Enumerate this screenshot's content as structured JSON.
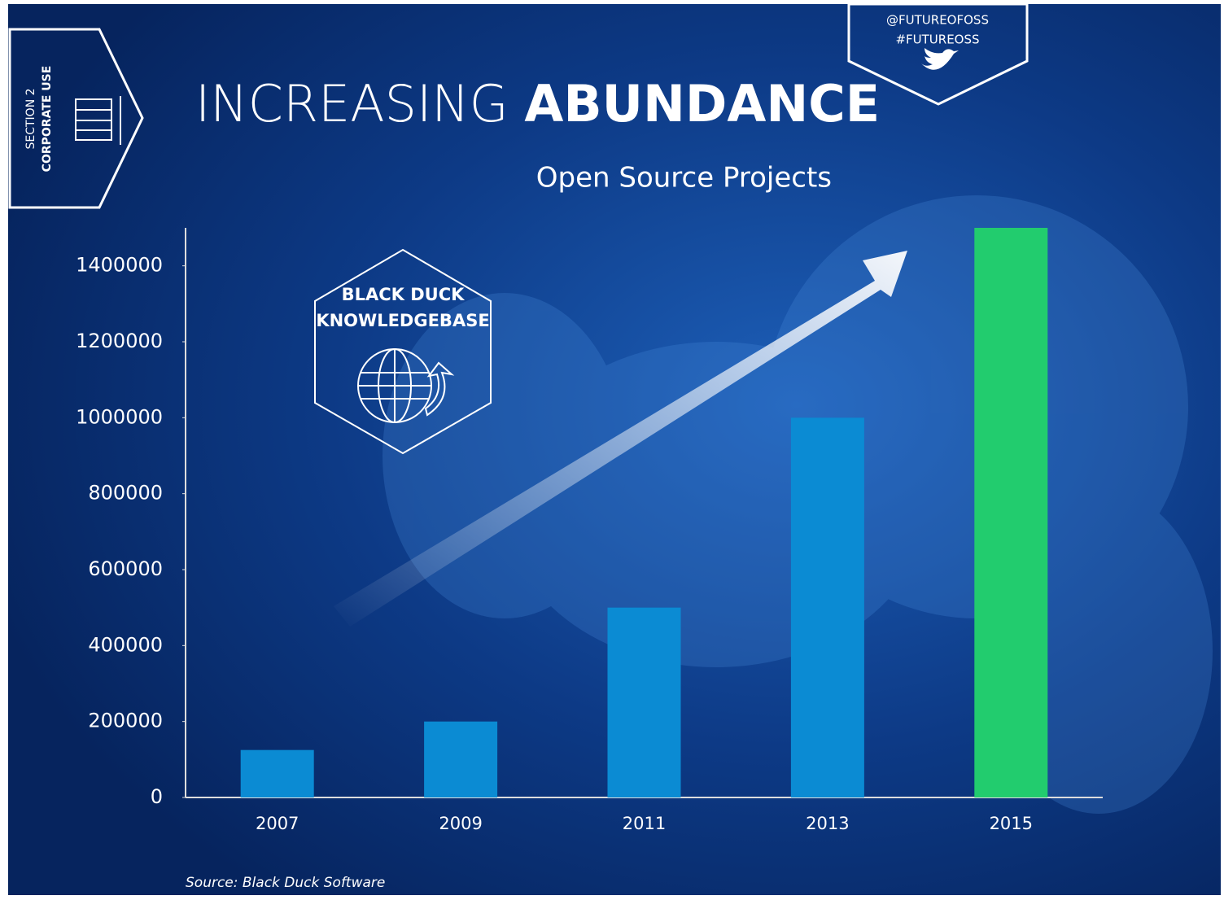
{
  "section": {
    "number": "SECTION 2",
    "name": "CORPORATE USE"
  },
  "social": [
    "@FUTUREOFOSS",
    "#FUTUREOSS"
  ],
  "badge": [
    "BLACK DUCK",
    "KNOWLEDGEBASE"
  ],
  "source": "Source: Black Duck Software",
  "chart_data": {
    "type": "bar",
    "title": "INCREASING",
    "title_emphasis": "ABUNDANCE",
    "subtitle": "Open Source Projects",
    "categories": [
      "2007",
      "2009",
      "2011",
      "2013",
      "2015"
    ],
    "values": [
      125000,
      200000,
      500000,
      1000000,
      1500000
    ],
    "colors": [
      "#0b8bd3",
      "#0b8bd3",
      "#0b8bd3",
      "#0b8bd3",
      "#22cc6e"
    ],
    "ylim": [
      0,
      1500000
    ],
    "yticks": [
      0,
      200000,
      400000,
      600000,
      800000,
      1000000,
      1200000,
      1400000
    ],
    "grid": false
  }
}
